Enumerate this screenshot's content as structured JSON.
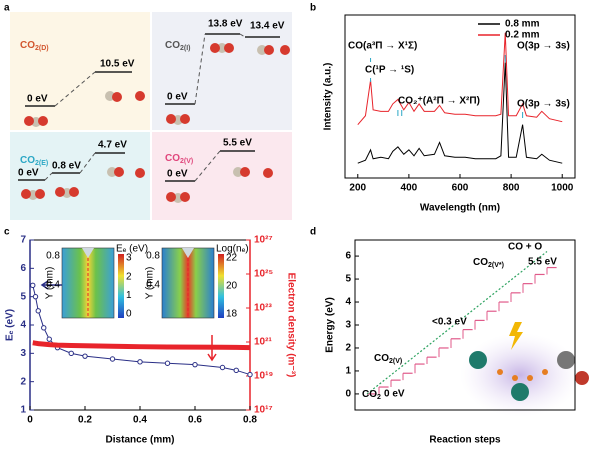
{
  "panel_labels": [
    "a",
    "b",
    "c",
    "d"
  ],
  "diagram": {
    "states": [
      {
        "label": {
          "base": "CO",
          "sub": "2(D)"
        },
        "color": "#d2562e",
        "levels": [
          "0 eV",
          "10.5 eV"
        ]
      },
      {
        "label": {
          "base": "CO",
          "sub": "2(I)"
        },
        "color": "#555555",
        "levels": [
          "0 eV",
          "13.8 eV",
          "13.4 eV"
        ]
      },
      {
        "label": {
          "base": "CO",
          "sub": "2(E)"
        },
        "color": "#2aa7c5",
        "levels": [
          "0 eV",
          "0.8 eV",
          "4.7 eV"
        ]
      },
      {
        "label": {
          "base": "CO",
          "sub": "2(V)"
        },
        "color": "#e0457b",
        "levels": [
          "0 eV",
          "5.5 eV"
        ]
      }
    ]
  },
  "chart_data": [
    {
      "type": "line",
      "x_label": "Wavelength (nm)",
      "y_label": "Intensity (a.u.)",
      "x": [
        200,
        230,
        250,
        260,
        290,
        320,
        337,
        357,
        380,
        400,
        420,
        440,
        460,
        500,
        520,
        540,
        580,
        620,
        660,
        700,
        740,
        760,
        777,
        790,
        820,
        845,
        860,
        900,
        920,
        950,
        1000
      ],
      "series": [
        {
          "name": "0.8 mm",
          "color": "#000000",
          "values": [
            1.0,
            1.2,
            1.9,
            1.3,
            1.4,
            1.3,
            1.8,
            2.1,
            1.6,
            1.9,
            1.5,
            2.0,
            1.5,
            1.6,
            2.4,
            1.5,
            1.4,
            1.4,
            1.3,
            1.3,
            1.3,
            1.5,
            7.8,
            1.4,
            1.4,
            3.6,
            1.4,
            1.3,
            1.6,
            1.2,
            1.0
          ]
        },
        {
          "name": "0.2 mm",
          "color": "#e8242b",
          "values": [
            3.6,
            4.2,
            6.6,
            4.6,
            4.5,
            4.5,
            5.0,
            5.3,
            4.6,
            5.1,
            4.5,
            5.0,
            4.5,
            4.5,
            4.9,
            4.4,
            4.3,
            4.3,
            4.2,
            4.2,
            4.2,
            4.3,
            9.8,
            4.2,
            4.2,
            5.0,
            4.2,
            4.1,
            4.5,
            4.0,
            3.8
          ]
        }
      ],
      "xlim": [
        150,
        1050
      ],
      "xticks": [
        200,
        400,
        600,
        800,
        1000
      ],
      "ylim": [
        0,
        11
      ],
      "legend": "top-right",
      "annotations": [
        "CO(a³Π → X¹Σ)",
        "C(¹P → ¹S)",
        "CO₂⁺(A²Π → X²Π)",
        "O(3p → 3s)",
        "O(3p → 3s)"
      ]
    },
    {
      "type": "line",
      "x_label": "Distance (mm)",
      "y_label": "Eₑ (eV)",
      "y2_label": "Electron density (m⁻³)",
      "x": [
        0.01,
        0.02,
        0.03,
        0.05,
        0.07,
        0.1,
        0.15,
        0.2,
        0.3,
        0.4,
        0.5,
        0.6,
        0.7,
        0.75,
        0.8
      ],
      "series": [
        {
          "color": "#2a2f86",
          "values": [
            5.4,
            5.0,
            4.5,
            3.9,
            3.5,
            3.2,
            3.0,
            2.9,
            2.8,
            2.7,
            2.65,
            2.6,
            2.5,
            2.4,
            2.25
          ]
        },
        {
          "color": "#e8242b",
          "axis": "y2",
          "values": [
            9e+20,
            8.5e+20,
            8e+20,
            7.5e+20,
            7e+20,
            6.5e+20,
            6.2e+20,
            6e+20,
            5.6e+20,
            5.3e+20,
            5.1e+20,
            5e+20,
            4.9e+20,
            4.8e+20,
            4.7e+20
          ]
        }
      ],
      "xlim": [
        0,
        0.8
      ],
      "xticks": [
        0.0,
        0.2,
        0.4,
        0.6,
        0.8
      ],
      "ylim": [
        1,
        7
      ],
      "yticks": [
        1,
        2,
        3,
        4,
        5,
        6,
        7
      ],
      "y2lim": [
        1e+17,
        1e+27
      ],
      "y2log": true,
      "y2ticks": [
        {
          "value": 1e+17,
          "label": "10¹⁷"
        },
        {
          "value": 1e+19,
          "label": "10¹⁹"
        },
        {
          "value": 1e+21,
          "label": "10²¹"
        },
        {
          "value": 1e+23,
          "label": "10²³"
        },
        {
          "value": 1e+25,
          "label": "10²⁵"
        },
        {
          "value": 1e+27,
          "label": "10²⁷"
        }
      ],
      "insets": [
        {
          "y_label": "Y (mm)",
          "title": "Eₑ (eV)",
          "yticks": [
            "0.8",
            "0.4"
          ],
          "cticks": [
            "3",
            "2",
            "1",
            "0"
          ]
        },
        {
          "y_label": "Y (mm)",
          "title": "Log(nₑ)",
          "yticks": [
            "0.8",
            "0.4"
          ],
          "cticks": [
            "22",
            "20",
            "18"
          ]
        }
      ]
    },
    {
      "type": "step",
      "x_label": "Reaction steps",
      "y_label": "Energy (eV)",
      "categories": [
        null,
        null,
        null,
        null,
        null,
        null,
        null,
        null,
        null,
        null,
        null,
        null,
        null,
        null,
        null,
        null
      ],
      "series": [
        {
          "color": "#e05a8a",
          "values": [
            0,
            0.3,
            0.6,
            0.9,
            1.3,
            1.6,
            2.0,
            2.4,
            2.8,
            3.2,
            3.6,
            4.0,
            4.4,
            4.8,
            5.2,
            5.5
          ]
        },
        {
          "color": "#2ca25f",
          "dashed": true,
          "x": [
            0,
            15
          ],
          "values": [
            0,
            6.2
          ]
        }
      ],
      "ylim": [
        -0.7,
        6.7
      ],
      "yticks": [
        0,
        1,
        2,
        3,
        4,
        5,
        6
      ],
      "annotations": [
        {
          "base": "CO",
          "sub": "2"
        },
        "0 eV",
        {
          "base": "CO",
          "sub": "2(V)"
        },
        "<0.3 eV",
        {
          "base": "CO",
          "sub": "2(V*)"
        },
        "CO + O",
        "5.5 eV"
      ]
    }
  ]
}
